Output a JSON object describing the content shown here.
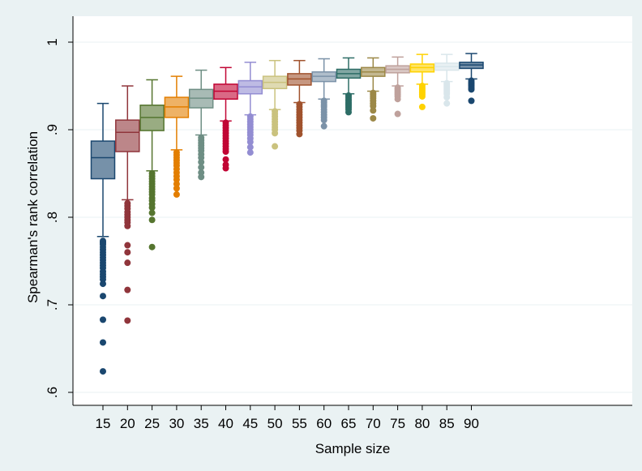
{
  "chart_data": {
    "type": "box",
    "title": "",
    "xlabel": "Sample size",
    "ylabel": "Spearman's rank correlation",
    "ylim": [
      0.6,
      1.0
    ],
    "yticks": [
      0.6,
      0.7,
      0.8,
      0.9,
      1.0
    ],
    "ytick_labels": [
      ".6",
      ".7",
      ".8",
      ".9",
      "1"
    ],
    "grid": "horizontal",
    "legend": "none",
    "categories": [
      "15",
      "20",
      "25",
      "30",
      "35",
      "40",
      "45",
      "50",
      "55",
      "60",
      "65",
      "70",
      "75",
      "80",
      "85",
      "90"
    ],
    "boxes": [
      {
        "x": "15",
        "color": "#1a476f",
        "whisker_low": 0.778,
        "q1": 0.844,
        "median": 0.868,
        "q3": 0.887,
        "whisker_high": 0.93,
        "outliers": [
          0.773,
          0.771,
          0.769,
          0.766,
          0.763,
          0.76,
          0.757,
          0.754,
          0.751,
          0.748,
          0.745,
          0.742,
          0.738,
          0.735,
          0.732,
          0.729,
          0.724,
          0.71,
          0.683,
          0.657,
          0.624
        ]
      },
      {
        "x": "20",
        "color": "#90353b",
        "whisker_low": 0.82,
        "q1": 0.875,
        "median": 0.897,
        "q3": 0.911,
        "whisker_high": 0.95,
        "outliers": [
          0.816,
          0.813,
          0.81,
          0.806,
          0.803,
          0.8,
          0.797,
          0.794,
          0.79,
          0.768,
          0.76,
          0.748,
          0.717,
          0.682
        ]
      },
      {
        "x": "25",
        "color": "#55752f",
        "whisker_low": 0.853,
        "q1": 0.899,
        "median": 0.914,
        "q3": 0.928,
        "whisker_high": 0.957,
        "outliers": [
          0.85,
          0.847,
          0.844,
          0.841,
          0.838,
          0.835,
          0.832,
          0.829,
          0.826,
          0.822,
          0.819,
          0.815,
          0.811,
          0.805,
          0.797,
          0.766
        ]
      },
      {
        "x": "30",
        "color": "#e37e00",
        "whisker_low": 0.877,
        "q1": 0.914,
        "median": 0.926,
        "q3": 0.937,
        "whisker_high": 0.961,
        "outliers": [
          0.874,
          0.871,
          0.868,
          0.865,
          0.862,
          0.859,
          0.855,
          0.851,
          0.847,
          0.843,
          0.838,
          0.833,
          0.826
        ]
      },
      {
        "x": "35",
        "color": "#6e8e84",
        "whisker_low": 0.894,
        "q1": 0.925,
        "median": 0.936,
        "q3": 0.946,
        "whisker_high": 0.968,
        "outliers": [
          0.891,
          0.888,
          0.885,
          0.882,
          0.879,
          0.876,
          0.872,
          0.868,
          0.863,
          0.857,
          0.851,
          0.846
        ]
      },
      {
        "x": "40",
        "color": "#c10534",
        "whisker_low": 0.91,
        "q1": 0.935,
        "median": 0.944,
        "q3": 0.952,
        "whisker_high": 0.971,
        "outliers": [
          0.908,
          0.905,
          0.902,
          0.899,
          0.896,
          0.893,
          0.89,
          0.887,
          0.884,
          0.881,
          0.878,
          0.875,
          0.866,
          0.86,
          0.856
        ]
      },
      {
        "x": "45",
        "color": "#938dd2",
        "whisker_low": 0.917,
        "q1": 0.941,
        "median": 0.949,
        "q3": 0.956,
        "whisker_high": 0.977,
        "outliers": [
          0.915,
          0.912,
          0.909,
          0.906,
          0.903,
          0.9,
          0.897,
          0.894,
          0.89,
          0.886,
          0.88,
          0.874
        ]
      },
      {
        "x": "50",
        "color": "#cac27e",
        "whisker_low": 0.923,
        "q1": 0.947,
        "median": 0.954,
        "q3": 0.961,
        "whisker_high": 0.979,
        "outliers": [
          0.921,
          0.918,
          0.915,
          0.912,
          0.909,
          0.906,
          0.903,
          0.9,
          0.896,
          0.881
        ]
      },
      {
        "x": "55",
        "color": "#a0522d",
        "whisker_low": 0.931,
        "q1": 0.951,
        "median": 0.958,
        "q3": 0.964,
        "whisker_high": 0.979,
        "outliers": [
          0.929,
          0.926,
          0.923,
          0.92,
          0.917,
          0.914,
          0.911,
          0.908,
          0.905,
          0.902,
          0.899,
          0.895
        ]
      },
      {
        "x": "60",
        "color": "#7b92a8",
        "whisker_low": 0.935,
        "q1": 0.955,
        "median": 0.961,
        "q3": 0.966,
        "whisker_high": 0.981,
        "outliers": [
          0.933,
          0.931,
          0.928,
          0.926,
          0.923,
          0.92,
          0.917,
          0.914,
          0.911,
          0.904
        ]
      },
      {
        "x": "65",
        "color": "#2d6d66",
        "whisker_low": 0.941,
        "q1": 0.959,
        "median": 0.964,
        "q3": 0.969,
        "whisker_high": 0.982,
        "outliers": [
          0.939,
          0.937,
          0.935,
          0.933,
          0.931,
          0.929,
          0.927,
          0.925,
          0.923,
          0.92
        ]
      },
      {
        "x": "70",
        "color": "#9c8847",
        "whisker_low": 0.944,
        "q1": 0.961,
        "median": 0.966,
        "q3": 0.971,
        "whisker_high": 0.982,
        "outliers": [
          0.942,
          0.94,
          0.938,
          0.936,
          0.933,
          0.93,
          0.927,
          0.922,
          0.913
        ]
      },
      {
        "x": "75",
        "color": "#bfa19c",
        "whisker_low": 0.95,
        "q1": 0.965,
        "median": 0.969,
        "q3": 0.973,
        "whisker_high": 0.983,
        "outliers": [
          0.948,
          0.946,
          0.944,
          0.942,
          0.94,
          0.938,
          0.935,
          0.918
        ]
      },
      {
        "x": "80",
        "color": "#ffd200",
        "whisker_low": 0.952,
        "q1": 0.966,
        "median": 0.971,
        "q3": 0.975,
        "whisker_high": 0.986,
        "outliers": [
          0.95,
          0.948,
          0.946,
          0.944,
          0.942,
          0.94,
          0.938,
          0.926
        ]
      },
      {
        "x": "85",
        "color": "#d9e6eb",
        "whisker_low": 0.955,
        "q1": 0.968,
        "median": 0.972,
        "q3": 0.976,
        "whisker_high": 0.986,
        "outliers": [
          0.953,
          0.951,
          0.949,
          0.947,
          0.945,
          0.943,
          0.941,
          0.937,
          0.93
        ]
      },
      {
        "x": "90",
        "color": "#1a476f",
        "whisker_low": 0.958,
        "q1": 0.97,
        "median": 0.974,
        "q3": 0.977,
        "whisker_high": 0.987,
        "outliers": [
          0.956,
          0.954,
          0.952,
          0.95,
          0.948,
          0.946,
          0.933
        ]
      }
    ],
    "colors": {
      "outer_background": "#eaf2f3",
      "plot_background": "#ffffff",
      "axis": "#000000",
      "grid": "#eaf2f3"
    }
  }
}
